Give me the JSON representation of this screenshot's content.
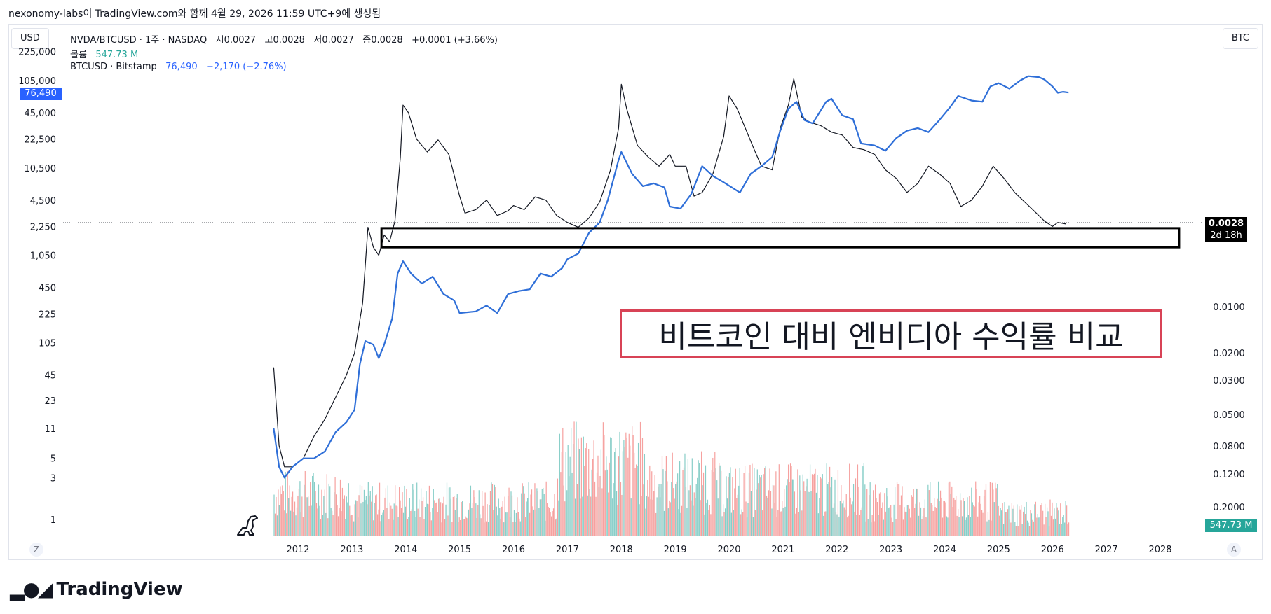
{
  "header": {
    "caption": "nexonomy-labs이 TradingView.com와 함께 4월 29, 2026 11:59 UTC+9에 생성됨"
  },
  "toolbar": {
    "left_unit": "USD",
    "right_unit": "BTC",
    "zoom_z": "Z",
    "auto_a": "A"
  },
  "legend": {
    "symbol": "NVDA/BTCUSD · 1주 · NASDAQ",
    "open_label": "시",
    "open": "0.0027",
    "high_label": "고",
    "high": "0.0028",
    "low_label": "저",
    "low": "0.0027",
    "close_label": "종",
    "close": "0.0028",
    "change": "+0.0001 (+3.66%)",
    "volume_label": "볼륨",
    "volume": "547.73 M",
    "btc_symbol": "BTCUSD · Bitstamp",
    "btc_value": "76,490",
    "btc_change": "−2,170 (−2.76%)"
  },
  "annotation": {
    "title": "비트코인 대비 엔비디아 수익률 비교"
  },
  "badges": {
    "btc_price": "76,490",
    "ratio_price": "0.0028",
    "countdown": "2d 18h",
    "volume": "547.73 M"
  },
  "branding": {
    "name": "TradingView"
  },
  "colors": {
    "btc_line": "#2f6fd8",
    "ratio": "#131722",
    "vol_up": "#26a69a",
    "vol_down": "#ef5350",
    "annotation_border": "#d84356",
    "badge_blue": "#2962ff",
    "badge_teal": "#26a69a"
  },
  "chart_data": {
    "type": "line",
    "x_ticks": [
      "2012",
      "2013",
      "2014",
      "2015",
      "2016",
      "2017",
      "2018",
      "2019",
      "2020",
      "2021",
      "2022",
      "2023",
      "2024",
      "2025",
      "2026",
      "2027",
      "2028"
    ],
    "left_axis": {
      "scale": "log",
      "ticks": [
        "225,000",
        "105,000",
        "45,000",
        "22,500",
        "10,500",
        "4,500",
        "2,250",
        "1,050",
        "450",
        "225",
        "105",
        "45",
        "23",
        "11",
        "5",
        "3",
        "1"
      ]
    },
    "right_axis": {
      "scale": "log-inverted",
      "ticks": [
        "0.0100",
        "0.0200",
        "0.0300",
        "0.0500",
        "0.0800",
        "0.1200",
        "0.2000"
      ]
    },
    "series": [
      {
        "name": "NVDA/BTCUSD",
        "axis": "left",
        "points": [
          [
            2011.55,
            55
          ],
          [
            2011.65,
            7
          ],
          [
            2011.75,
            4
          ],
          [
            2011.9,
            4
          ],
          [
            2012.1,
            5
          ],
          [
            2012.3,
            9
          ],
          [
            2012.5,
            14
          ],
          [
            2012.7,
            25
          ],
          [
            2012.9,
            45
          ],
          [
            2013.05,
            80
          ],
          [
            2013.2,
            300
          ],
          [
            2013.3,
            2200
          ],
          [
            2013.4,
            1300
          ],
          [
            2013.5,
            1050
          ],
          [
            2013.6,
            1800
          ],
          [
            2013.7,
            1500
          ],
          [
            2013.8,
            2600
          ],
          [
            2013.9,
            14000
          ],
          [
            2013.95,
            55000
          ],
          [
            2014.05,
            45000
          ],
          [
            2014.2,
            22500
          ],
          [
            2014.4,
            16000
          ],
          [
            2014.6,
            22000
          ],
          [
            2014.8,
            15000
          ],
          [
            2015.0,
            5000
          ],
          [
            2015.1,
            3200
          ],
          [
            2015.3,
            3500
          ],
          [
            2015.5,
            4500
          ],
          [
            2015.7,
            3000
          ],
          [
            2015.9,
            3400
          ],
          [
            2016.0,
            3900
          ],
          [
            2016.2,
            3500
          ],
          [
            2016.4,
            4900
          ],
          [
            2016.6,
            4500
          ],
          [
            2016.8,
            3000
          ],
          [
            2017.0,
            2500
          ],
          [
            2017.2,
            2200
          ],
          [
            2017.4,
            2800
          ],
          [
            2017.6,
            4300
          ],
          [
            2017.8,
            10000
          ],
          [
            2017.95,
            30000
          ],
          [
            2018.0,
            95000
          ],
          [
            2018.1,
            50000
          ],
          [
            2018.3,
            19000
          ],
          [
            2018.5,
            14000
          ],
          [
            2018.7,
            11000
          ],
          [
            2018.9,
            15000
          ],
          [
            2019.0,
            11000
          ],
          [
            2019.2,
            11000
          ],
          [
            2019.35,
            5000
          ],
          [
            2019.5,
            5500
          ],
          [
            2019.7,
            9000
          ],
          [
            2019.9,
            24000
          ],
          [
            2020.0,
            70000
          ],
          [
            2020.15,
            50000
          ],
          [
            2020.3,
            30000
          ],
          [
            2020.45,
            18000
          ],
          [
            2020.6,
            11000
          ],
          [
            2020.8,
            10000
          ],
          [
            2020.95,
            30000
          ],
          [
            2021.1,
            55000
          ],
          [
            2021.2,
            110000
          ],
          [
            2021.35,
            40000
          ],
          [
            2021.5,
            35000
          ],
          [
            2021.7,
            32000
          ],
          [
            2021.9,
            27000
          ],
          [
            2022.1,
            25000
          ],
          [
            2022.3,
            18000
          ],
          [
            2022.5,
            17000
          ],
          [
            2022.7,
            15000
          ],
          [
            2022.9,
            10000
          ],
          [
            2023.1,
            8000
          ],
          [
            2023.3,
            5500
          ],
          [
            2023.5,
            7000
          ],
          [
            2023.7,
            11000
          ],
          [
            2023.9,
            9000
          ],
          [
            2024.1,
            7000
          ],
          [
            2024.3,
            3800
          ],
          [
            2024.5,
            4500
          ],
          [
            2024.7,
            6500
          ],
          [
            2024.9,
            11000
          ],
          [
            2025.1,
            8000
          ],
          [
            2025.3,
            5500
          ],
          [
            2025.5,
            4200
          ],
          [
            2025.7,
            3200
          ],
          [
            2025.85,
            2600
          ],
          [
            2026.0,
            2250
          ],
          [
            2026.1,
            2500
          ],
          [
            2026.25,
            2400
          ]
        ]
      },
      {
        "name": "BTCUSD · Bitstamp",
        "axis": "left",
        "points": [
          [
            2011.55,
            11
          ],
          [
            2011.65,
            4
          ],
          [
            2011.75,
            3
          ],
          [
            2011.9,
            4
          ],
          [
            2012.1,
            5
          ],
          [
            2012.3,
            5
          ],
          [
            2012.5,
            6
          ],
          [
            2012.7,
            10
          ],
          [
            2012.9,
            13
          ],
          [
            2013.05,
            18
          ],
          [
            2013.15,
            60
          ],
          [
            2013.25,
            110
          ],
          [
            2013.4,
            100
          ],
          [
            2013.5,
            70
          ],
          [
            2013.6,
            100
          ],
          [
            2013.75,
            200
          ],
          [
            2013.85,
            650
          ],
          [
            2013.95,
            900
          ],
          [
            2014.1,
            650
          ],
          [
            2014.3,
            500
          ],
          [
            2014.5,
            600
          ],
          [
            2014.7,
            380
          ],
          [
            2014.9,
            320
          ],
          [
            2015.0,
            230
          ],
          [
            2015.3,
            240
          ],
          [
            2015.5,
            280
          ],
          [
            2015.7,
            230
          ],
          [
            2015.9,
            380
          ],
          [
            2016.1,
            410
          ],
          [
            2016.3,
            430
          ],
          [
            2016.5,
            650
          ],
          [
            2016.7,
            600
          ],
          [
            2016.9,
            750
          ],
          [
            2017.0,
            950
          ],
          [
            2017.2,
            1100
          ],
          [
            2017.4,
            1900
          ],
          [
            2017.6,
            2500
          ],
          [
            2017.75,
            4500
          ],
          [
            2017.95,
            13000
          ],
          [
            2018.0,
            16000
          ],
          [
            2018.2,
            9000
          ],
          [
            2018.4,
            6500
          ],
          [
            2018.6,
            7000
          ],
          [
            2018.8,
            6300
          ],
          [
            2018.9,
            3800
          ],
          [
            2019.1,
            3600
          ],
          [
            2019.3,
            5300
          ],
          [
            2019.5,
            11000
          ],
          [
            2019.7,
            8500
          ],
          [
            2019.9,
            7200
          ],
          [
            2020.2,
            5500
          ],
          [
            2020.4,
            9000
          ],
          [
            2020.6,
            11000
          ],
          [
            2020.8,
            14000
          ],
          [
            2020.95,
            28000
          ],
          [
            2021.1,
            50000
          ],
          [
            2021.25,
            60000
          ],
          [
            2021.4,
            37000
          ],
          [
            2021.55,
            34000
          ],
          [
            2021.8,
            60000
          ],
          [
            2021.9,
            65000
          ],
          [
            2022.1,
            42000
          ],
          [
            2022.3,
            38000
          ],
          [
            2022.45,
            20000
          ],
          [
            2022.7,
            19000
          ],
          [
            2022.9,
            16500
          ],
          [
            2023.1,
            23000
          ],
          [
            2023.3,
            28000
          ],
          [
            2023.5,
            30000
          ],
          [
            2023.7,
            27000
          ],
          [
            2023.9,
            37000
          ],
          [
            2024.1,
            52000
          ],
          [
            2024.25,
            70000
          ],
          [
            2024.5,
            62000
          ],
          [
            2024.7,
            60000
          ],
          [
            2024.85,
            90000
          ],
          [
            2025.0,
            98000
          ],
          [
            2025.2,
            85000
          ],
          [
            2025.4,
            105000
          ],
          [
            2025.55,
            118000
          ],
          [
            2025.75,
            115000
          ],
          [
            2025.85,
            108000
          ],
          [
            2026.0,
            90000
          ],
          [
            2026.1,
            76000
          ],
          [
            2026.2,
            78000
          ],
          [
            2026.3,
            76490
          ]
        ]
      }
    ],
    "volume_axis": {
      "scale": "relative"
    },
    "xlim": [
      2011.0,
      2028.6
    ],
    "ylim": [
      0.7,
      300000
    ],
    "highlight_box": {
      "x_range": [
        2013.55,
        2028.35
      ],
      "y_range": [
        1300,
        2150
      ]
    },
    "last_ratio": 0.0028,
    "last_btc": 76490,
    "last_volume": "547.73 M"
  }
}
